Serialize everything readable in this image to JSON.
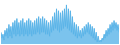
{
  "chart_data": {
    "type": "area",
    "values": [
      30,
      15,
      25,
      10,
      35,
      20,
      40,
      15,
      50,
      20,
      45,
      15,
      55,
      25,
      60,
      20,
      65,
      25,
      55,
      20,
      60,
      25,
      65,
      20,
      55,
      25,
      60,
      20,
      65,
      25,
      60,
      20,
      55,
      25,
      60,
      25,
      65,
      30,
      70,
      25,
      65,
      30,
      70,
      30,
      65,
      25,
      60,
      25,
      55,
      20,
      60,
      30,
      70,
      35,
      80,
      40,
      90,
      35,
      85,
      30,
      80,
      35,
      85,
      40,
      90,
      45,
      100,
      40,
      90,
      35,
      85,
      30,
      70,
      25,
      55,
      20,
      50,
      15,
      45,
      20,
      35,
      15,
      40,
      20,
      45,
      25,
      50,
      30,
      55,
      25,
      50,
      20,
      45,
      15,
      40,
      10,
      30,
      5,
      20,
      5,
      10,
      5,
      15,
      10,
      25,
      15,
      35,
      20,
      40,
      25,
      50,
      30,
      55,
      35,
      60,
      40,
      55,
      35,
      50,
      30
    ],
    "color": "#5ab4e8",
    "ylim": [
      0,
      110
    ],
    "grid": false,
    "tick_labels": false
  }
}
